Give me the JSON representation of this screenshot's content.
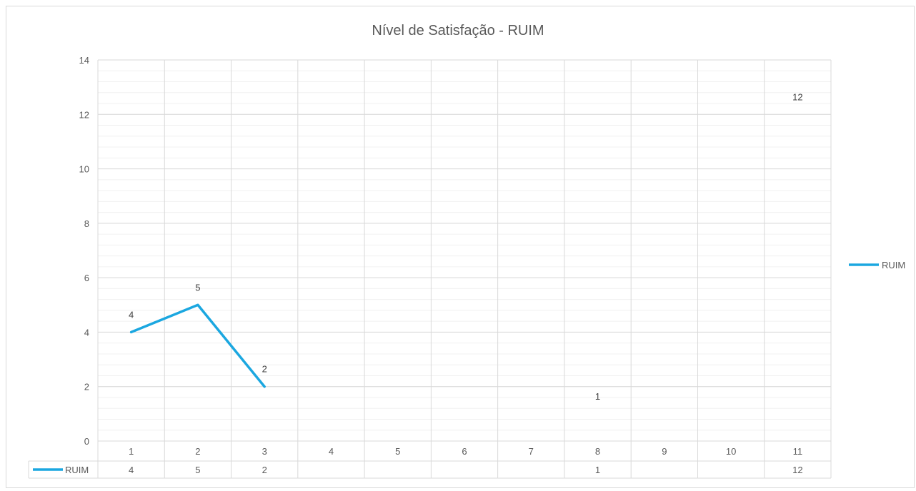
{
  "chart_data": {
    "type": "line",
    "title": "Nível de Satisfação - RUIM",
    "xlabel": "",
    "ylabel": "",
    "categories": [
      "1",
      "2",
      "3",
      "4",
      "5",
      "6",
      "7",
      "8",
      "9",
      "10",
      "11"
    ],
    "series": [
      {
        "name": "RUIM",
        "color": "#1ba7e0",
        "values": [
          4,
          5,
          2,
          null,
          null,
          null,
          null,
          1,
          null,
          null,
          12
        ]
      }
    ],
    "ylim": [
      0,
      14
    ],
    "yticks": [
      0,
      2,
      4,
      6,
      8,
      10,
      12,
      14
    ],
    "grid": true,
    "legend_position": "right",
    "data_table": true,
    "data_labels": true
  }
}
